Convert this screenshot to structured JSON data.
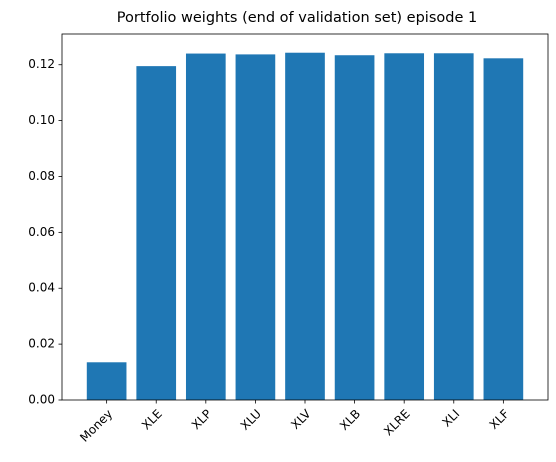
{
  "chart_data": {
    "type": "bar",
    "title": "Portfolio weights (end of validation set) episode 1",
    "xlabel": "",
    "ylabel": "",
    "categories": [
      "Money",
      "XLE",
      "XLP",
      "XLU",
      "XLV",
      "XLB",
      "XLRE",
      "XLI",
      "XLF"
    ],
    "values": [
      0.0135,
      0.1195,
      0.124,
      0.1237,
      0.1243,
      0.1234,
      0.1241,
      0.1241,
      0.1223
    ],
    "ylim": [
      0,
      0.131
    ],
    "yticks": [
      "0.00",
      "0.02",
      "0.04",
      "0.06",
      "0.08",
      "0.10",
      "0.12"
    ],
    "bar_color": "#1f77b4",
    "grid": false,
    "legend": false,
    "xtick_rotation": "45 degrees"
  }
}
